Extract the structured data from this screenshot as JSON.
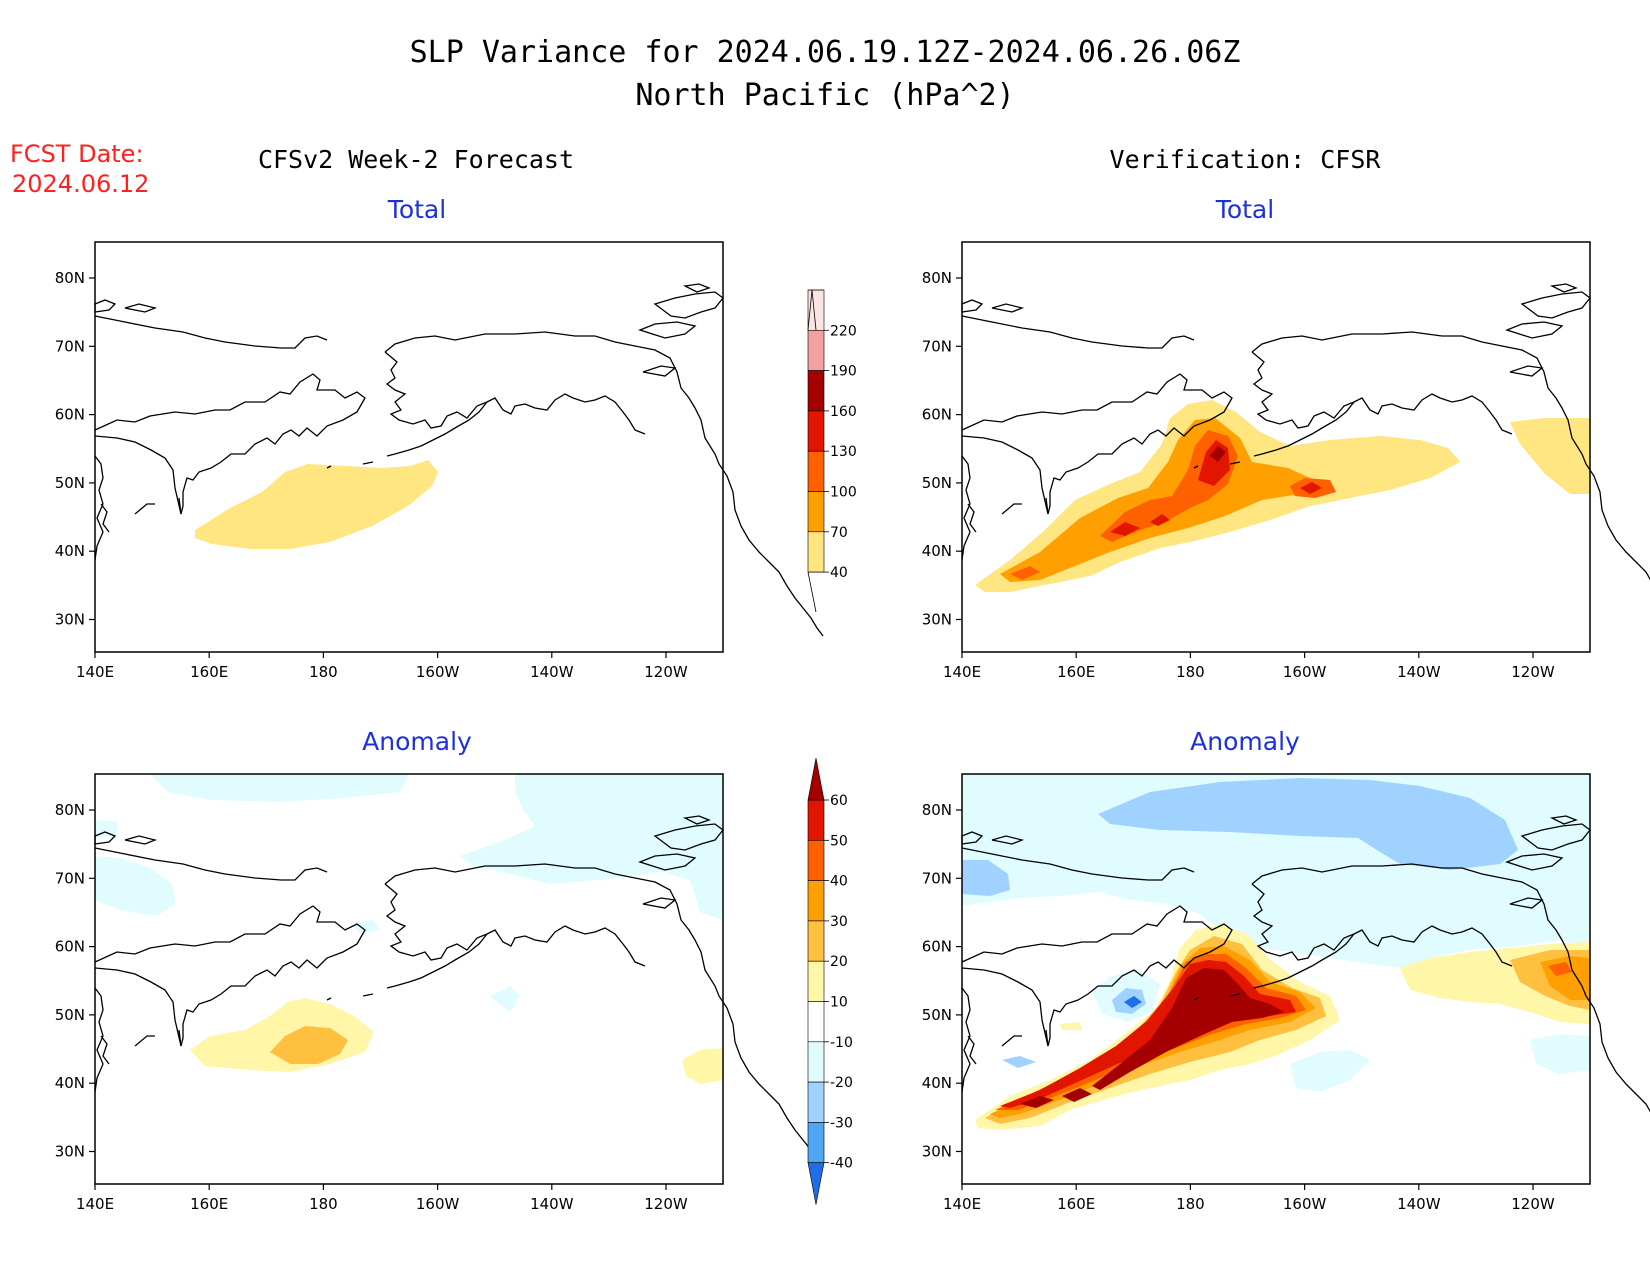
{
  "title": {
    "line1": "SLP Variance for 2024.06.19.12Z-2024.06.26.06Z",
    "line2": "North Pacific (hPa^2)"
  },
  "fcst": {
    "label": "FCST Date:",
    "date": "2024.06.12"
  },
  "columns": {
    "left": "CFSv2 Week-2 Forecast",
    "right": "Verification: CFSR"
  },
  "panel_titles": {
    "total": "Total",
    "anomaly": "Anomaly"
  },
  "axes": {
    "x_ticks": [
      "140E",
      "160E",
      "180",
      "160W",
      "140W",
      "120W"
    ],
    "y_ticks": [
      "80N",
      "70N",
      "60N",
      "50N",
      "40N",
      "30N"
    ],
    "lon_range": [
      140,
      250
    ],
    "lat_range": [
      25,
      85
    ]
  },
  "colorbars": {
    "total": {
      "levels": [
        "40",
        "70",
        "100",
        "130",
        "160",
        "190",
        "220"
      ],
      "colors": [
        "#ffe680",
        "#ffa000",
        "#ff6000",
        "#e11500",
        "#a50000",
        "#f2a0a0",
        "#fde4e4"
      ]
    },
    "anomaly": {
      "levels": [
        "60",
        "50",
        "40",
        "30",
        "20",
        "10",
        "-10",
        "-20",
        "-30",
        "-40"
      ],
      "colors_top_to_bottom": [
        "#a50000",
        "#e11500",
        "#ff6000",
        "#ffa000",
        "#ffc040",
        "#fff6a8",
        "#ffffff",
        "#e0fcff",
        "#a0d2ff",
        "#50a5f5",
        "#1e6ee6"
      ]
    }
  },
  "icons": {
    "colorbar_end_arrow": "triangle-arrow-icon"
  }
}
